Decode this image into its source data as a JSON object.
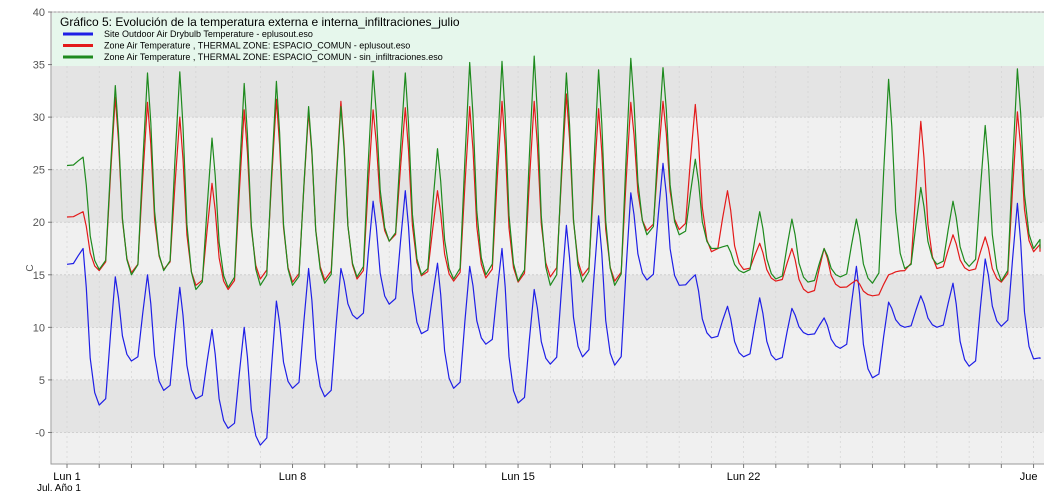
{
  "chart_data": {
    "type": "line",
    "title": "Gráfico 5: Evolución de la temperatura externa e interna_infiltraciones_julio",
    "ylabel": "C",
    "ylim": [
      -3,
      40
    ],
    "y_ticks": [
      "-0",
      "5",
      "10",
      "15",
      "20",
      "25",
      "30",
      "35",
      "40"
    ],
    "y_tick_values": [
      0,
      5,
      10,
      15,
      20,
      25,
      30,
      35,
      40
    ],
    "xlim": [
      0,
      30.2
    ],
    "x_ticks": [
      {
        "value": 0,
        "label": "Lun 1"
      },
      {
        "value": 7,
        "label": "Lun 8"
      },
      {
        "value": 14,
        "label": "Lun 15"
      },
      {
        "value": 21,
        "label": "Lun 22"
      },
      {
        "value": 30,
        "label": "Jue"
      }
    ],
    "x_sublabel": "Jul. Año 1",
    "grid": true,
    "legend_position": "top-left",
    "series": [
      {
        "name": "Site Outdoor Air Drybulb Temperature  - eplusout.eso",
        "color": "#1f1fe6",
        "daily_max": [
          17.5,
          14.8,
          15.0,
          13.8,
          9.8,
          10.0,
          12.5,
          15.6,
          15.6,
          22.0,
          23.0,
          16.1,
          15.8,
          17.5,
          13.6,
          19.7,
          20.6,
          22.8,
          25.6,
          15.0,
          12.0,
          12.8,
          11.8,
          10.9,
          15.8,
          12.4,
          13.0,
          14.2,
          16.5,
          21.8,
          9.0
        ],
        "daily_min": [
          16.0,
          2.6,
          6.8,
          4.0,
          3.2,
          0.4,
          -1.2,
          4.2,
          3.4,
          10.8,
          12.2,
          9.4,
          4.2,
          8.4,
          2.8,
          6.5,
          7.2,
          6.4,
          14.5,
          14.0,
          9.0,
          7.2,
          6.9,
          9.3,
          8.0,
          5.2,
          10.0,
          10.0,
          6.3,
          10.1,
          7.0
        ],
        "end_value": 7.0
      },
      {
        "name": "Zone Air Temperature , THERMAL ZONE: ESPACIO_COMUN - eplusout.eso",
        "color": "#e31a1a",
        "daily_max": [
          21.0,
          31.9,
          31.4,
          30.0,
          23.7,
          30.7,
          31.7,
          30.5,
          31.5,
          30.7,
          30.9,
          23.0,
          31.0,
          31.5,
          31.5,
          32.2,
          30.8,
          31.4,
          31.5,
          31.2,
          23.0,
          18.0,
          17.5,
          17.5,
          14.5,
          15.0,
          29.6,
          18.8,
          18.6,
          30.5,
          31.0
        ],
        "daily_min": [
          20.5,
          15.4,
          15.2,
          15.5,
          14.0,
          13.6,
          14.6,
          14.3,
          14.5,
          14.6,
          18.2,
          14.9,
          14.4,
          14.7,
          14.3,
          14.8,
          14.9,
          14.4,
          19.2,
          19.3,
          17.2,
          15.5,
          14.4,
          13.3,
          13.8,
          13.0,
          15.4,
          15.6,
          15.4,
          14.3,
          17.2
        ],
        "end_value": 17.2
      },
      {
        "name": "Zone Air Temperature , THERMAL ZONE: ESPACIO_COMUN - sin_infiltraciones.eso",
        "color": "#1e8a1e",
        "daily_max": [
          26.2,
          33.0,
          34.2,
          34.3,
          28.0,
          33.2,
          33.4,
          31.0,
          31.0,
          34.4,
          34.2,
          27.0,
          35.2,
          35.3,
          35.8,
          34.2,
          34.5,
          35.6,
          34.7,
          26.0,
          17.8,
          21.0,
          20.3,
          17.5,
          20.3,
          33.6,
          23.3,
          22.0,
          29.2,
          34.6,
          34.6
        ],
        "daily_min": [
          25.4,
          15.5,
          15.0,
          15.4,
          13.6,
          13.8,
          14.0,
          14.0,
          14.2,
          14.8,
          18.2,
          15.0,
          14.6,
          15.0,
          14.4,
          14.0,
          14.3,
          14.0,
          18.8,
          18.8,
          17.5,
          15.2,
          14.6,
          14.3,
          14.8,
          14.2,
          15.6,
          16.0,
          15.8,
          14.4,
          17.5
        ],
        "end_value": 17.5
      }
    ]
  }
}
